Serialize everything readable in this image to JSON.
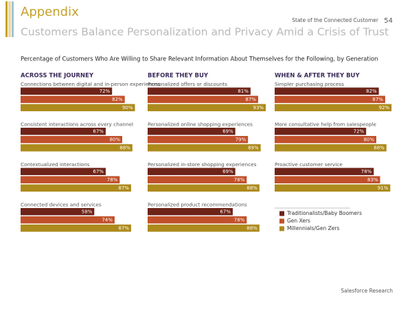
{
  "header": {
    "section": "Appendix",
    "title": "Customers Balance Personalization and Privacy Amid a Crisis of Trust",
    "report": "State of the Connected Customer",
    "page": "54"
  },
  "subtitle": "Percentage of Customers Who Are Willing to Share Relevant Information About Themselves for the Following, by Generation",
  "columns": [
    "ACROSS THE JOURNEY",
    "BEFORE THEY BUY",
    "WHEN & AFTER THEY BUY"
  ],
  "legend": [
    {
      "name": "Traditionalists/Baby Boomers",
      "color": "#6e2318"
    },
    {
      "name": "Gen Xers",
      "color": "#c1512b"
    },
    {
      "name": "Millennials/Gen Zers",
      "color": "#ad8a1c"
    }
  ],
  "chart_data": [
    {
      "type": "bar",
      "title": "Connections between digital and in-person experiences",
      "values": [
        72,
        82,
        90
      ],
      "value_labels": [
        "72%",
        "82%",
        "90%"
      ],
      "xlim": [
        0,
        100
      ]
    },
    {
      "type": "bar",
      "title": "Personalized offers or discounts",
      "values": [
        81,
        87,
        93
      ],
      "value_labels": [
        "81%",
        "87%",
        "93%"
      ],
      "xlim": [
        0,
        100
      ]
    },
    {
      "type": "bar",
      "title": "Simpler purchasing process",
      "values": [
        82,
        87,
        92
      ],
      "value_labels": [
        "82%",
        "87%",
        "92%"
      ],
      "xlim": [
        0,
        100
      ]
    },
    {
      "type": "bar",
      "title": "Consistent interactions across every channel",
      "values": [
        67,
        80,
        88
      ],
      "value_labels": [
        "67%",
        "80%",
        "88%"
      ],
      "xlim": [
        0,
        100
      ]
    },
    {
      "type": "bar",
      "title": "Personalized online shopping experiences",
      "values": [
        69,
        79,
        89
      ],
      "value_labels": [
        "69%",
        "79%",
        "89%"
      ],
      "xlim": [
        0,
        100
      ]
    },
    {
      "type": "bar",
      "title": "More consultative help from salespeople",
      "values": [
        72,
        80,
        88
      ],
      "value_labels": [
        "72%",
        "80%",
        "88%"
      ],
      "xlim": [
        0,
        100
      ]
    },
    {
      "type": "bar",
      "title": "Contextualized interactions",
      "values": [
        67,
        78,
        87
      ],
      "value_labels": [
        "67%",
        "78%",
        "87%"
      ],
      "xlim": [
        0,
        100
      ]
    },
    {
      "type": "bar",
      "title": "Personalized in-store shopping experiences",
      "values": [
        69,
        78,
        88
      ],
      "value_labels": [
        "69%",
        "78%",
        "88%"
      ],
      "xlim": [
        0,
        100
      ]
    },
    {
      "type": "bar",
      "title": "Proactive customer service",
      "values": [
        78,
        83,
        91
      ],
      "value_labels": [
        "78%",
        "83%",
        "91%"
      ],
      "xlim": [
        0,
        100
      ]
    },
    {
      "type": "bar",
      "title": "Connected devices and services",
      "values": [
        58,
        74,
        87
      ],
      "value_labels": [
        "58%",
        "74%",
        "87%"
      ],
      "xlim": [
        0,
        100
      ]
    },
    {
      "type": "bar",
      "title": "Personalized product recommendations",
      "values": [
        67,
        78,
        88
      ],
      "value_labels": [
        "67%",
        "78%",
        "88%"
      ],
      "xlim": [
        0,
        100
      ]
    }
  ],
  "footer": "Salesforce Research"
}
